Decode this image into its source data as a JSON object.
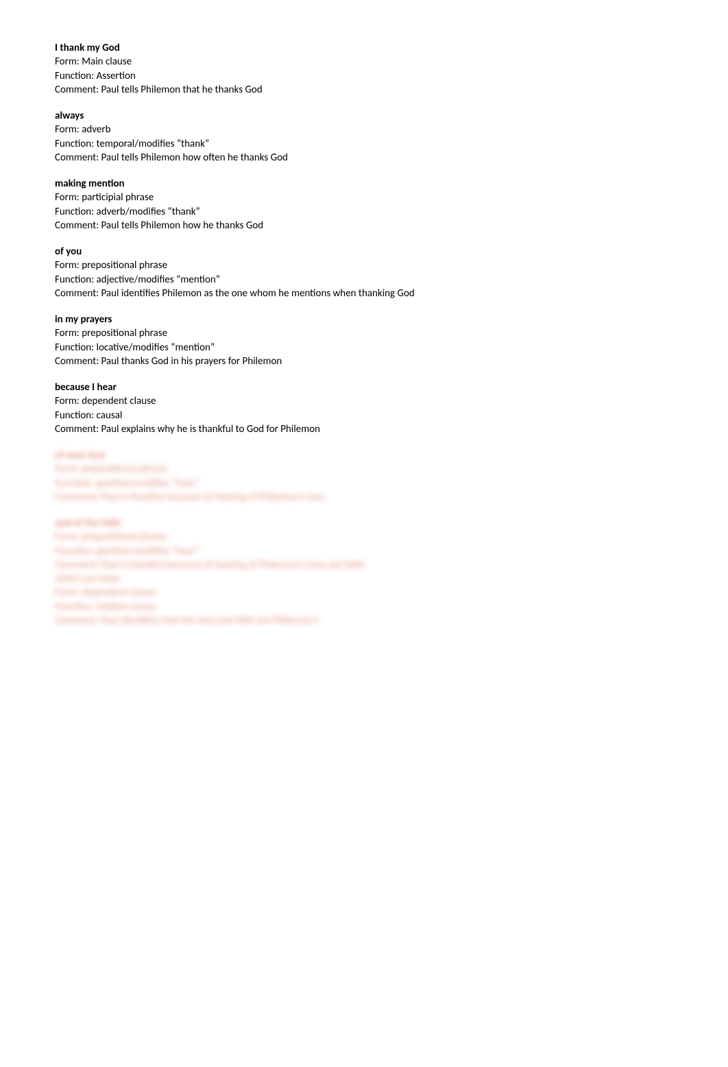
{
  "sections": [
    {
      "heading": "I thank my God",
      "form": "Form: Main clause",
      "function": "Function: Assertion",
      "comment": "Comment: Paul tells Philemon that he thanks God"
    },
    {
      "heading": "always",
      "form": "Form: adverb",
      "function": "Function: temporal/modifies “thank”",
      "comment": "Comment: Paul tells Philemon how often he thanks God"
    },
    {
      "heading": "making mention",
      "form": "Form: participial phrase",
      "function": "Function: adverb/modifies “thank”",
      "comment": "Comment: Paul tells Philemon how he thanks God"
    },
    {
      "heading": "of you",
      "form": "Form: prepositional phrase",
      "function": "Function: adjective/modifies “mention”",
      "comment": "Comment: Paul identifies Philemon as the one whom he mentions when thanking God"
    },
    {
      "heading": "in my prayers",
      "form": "Form: prepositional phrase",
      "function": "Function: locative/modifies “mention”",
      "comment": "Comment: Paul thanks God in his prayers for Philemon"
    },
    {
      "heading": "because I hear",
      "form": "Form: dependent clause",
      "function": "Function: causal",
      "comment": "Comment: Paul explains why he is thankful to God for Philemon"
    }
  ],
  "blurred": [
    {
      "heading": "of your love",
      "lines": [
        "Form: prepositional phrase",
        "Function: genitive/modifies “hear”",
        "Comment: Paul is thankful because of hearing of Philemon's love"
      ]
    },
    {
      "heading": "and of the faith",
      "lines": [
        "Form: prepositional phrase",
        "Function: genitive/modifies “hear”",
        "Comment: Paul is thankful because of hearing of Philemon's love and faith",
        "which you have",
        "Form: dependent clause",
        "Function: relative clause",
        "Comment: Paul identifies that the love and faith are Philemon's"
      ]
    }
  ]
}
